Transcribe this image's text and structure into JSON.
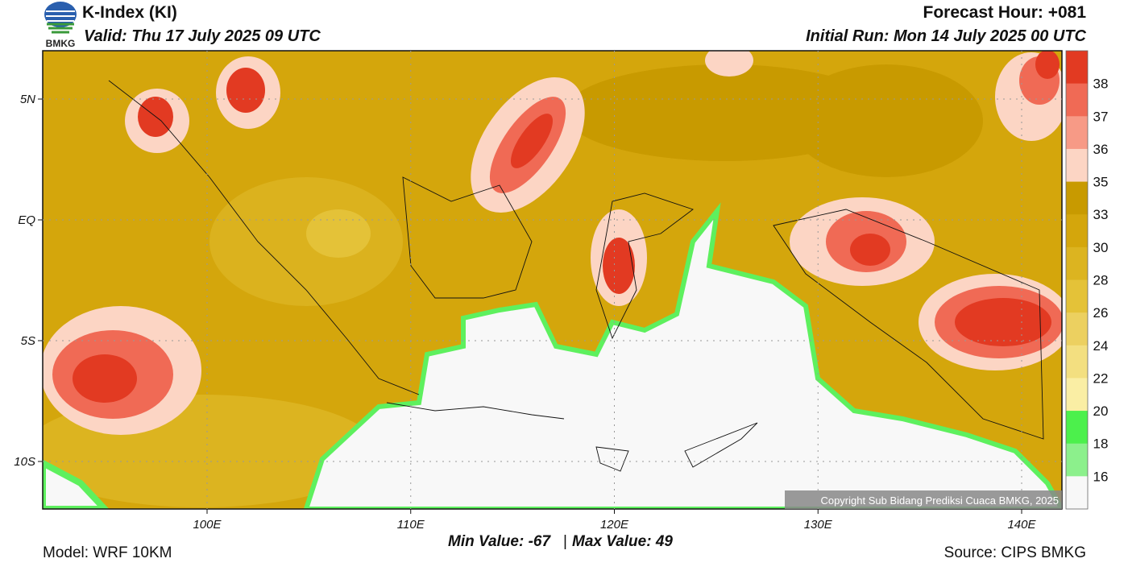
{
  "header": {
    "logo_text": "BMKG",
    "title": "K-Index (KI)",
    "valid": "Valid: Thu 17 July 2025 09 UTC",
    "forecast_hour": "Forecast Hour: +081",
    "initial_run": "Initial Run: Mon 14 July 2025 00 UTC"
  },
  "map": {
    "lat_labels": [
      "5N",
      "EQ",
      "5S",
      "10S"
    ],
    "lon_labels": [
      "100E",
      "110E",
      "120E",
      "130E",
      "140E"
    ],
    "copyright": "Copyright Sub Bidang Prediksi Cuaca BMKG, 2025"
  },
  "colorbar": {
    "levels": [
      38,
      37,
      36,
      35,
      33,
      30,
      28,
      26,
      24,
      22,
      20,
      18,
      16
    ],
    "colors": [
      "#e23a22",
      "#f06a55",
      "#f79a86",
      "#fcd5c4",
      "#c89a00",
      "#d4a60c",
      "#dcb420",
      "#e4c238",
      "#ecd060",
      "#f3df80",
      "#faeea4",
      "#4cf04c",
      "#8cf08c",
      "#f8f8f8"
    ]
  },
  "stats": {
    "min": "Min Value: -67",
    "separator": "|",
    "max": "Max Value:  49"
  },
  "footer": {
    "model": "Model: WRF 10KM",
    "source": "Source: CIPS BMKG"
  }
}
